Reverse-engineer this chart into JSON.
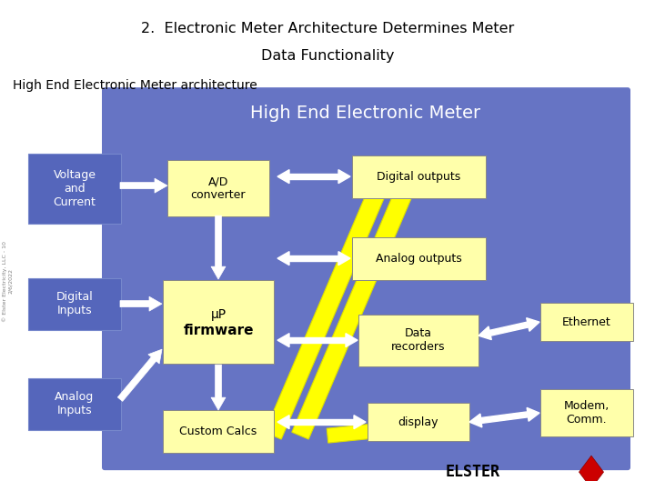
{
  "title_line1": "2.  Electronic Meter Architecture Determines Meter",
  "title_line2": "Data Functionality",
  "subtitle": "High End Electronic Meter architecture",
  "diagram_title": "High End Electronic Meter",
  "bg_color": "#6674C4",
  "box_color": "#FFFFAA",
  "input_box_color": "#5566BB",
  "divider_red": "#CC0000",
  "diagram_title_color": "#FFFFFF",
  "yellow_color": "#FFFF00",
  "white_color": "#FFFFFF"
}
